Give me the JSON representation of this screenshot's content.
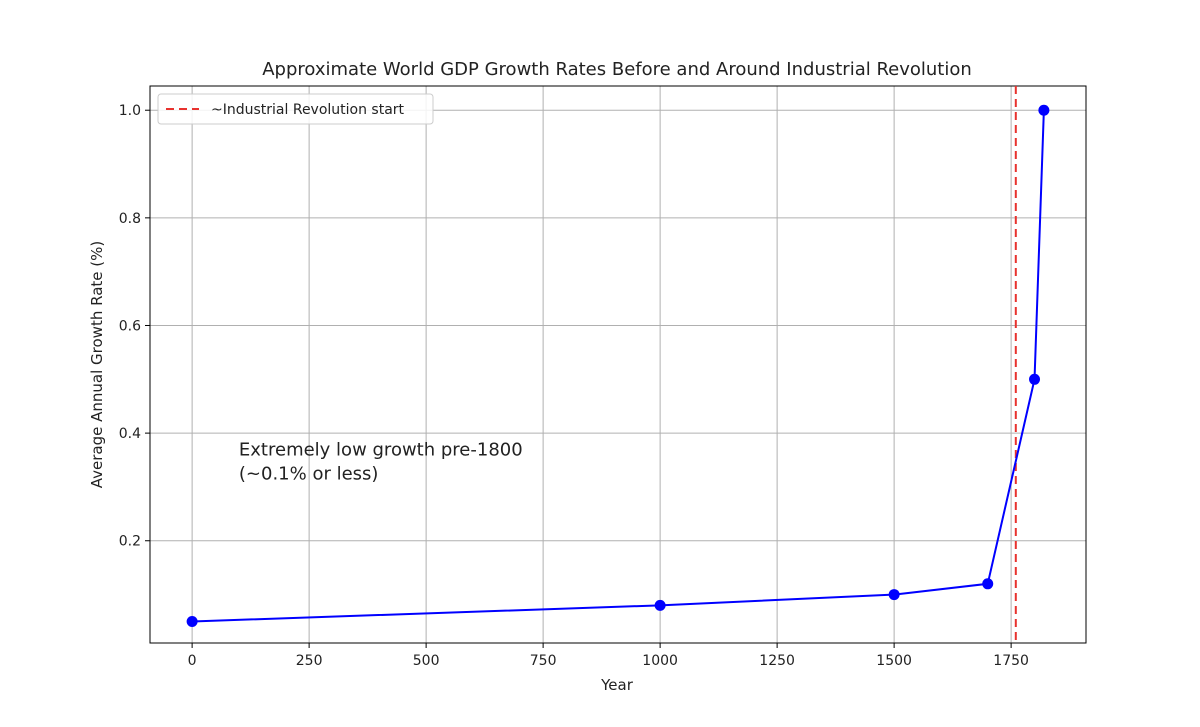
{
  "chart_data": {
    "type": "line",
    "title": "Approximate World GDP Growth Rates Before and Around Industrial Revolution",
    "xlabel": "Year",
    "ylabel": "Average Annual Growth Rate (%)",
    "xlim": [
      -90,
      1910
    ],
    "ylim": [
      0.01,
      1.045
    ],
    "x_ticks": [
      0,
      250,
      500,
      750,
      1000,
      1250,
      1500,
      1750
    ],
    "x_tick_labels": [
      "0",
      "250",
      "500",
      "750",
      "1000",
      "1250",
      "1500",
      "1750"
    ],
    "y_ticks": [
      0.2,
      0.4,
      0.6,
      0.8,
      1.0
    ],
    "y_tick_labels": [
      "0.2",
      "0.4",
      "0.6",
      "0.8",
      "1.0"
    ],
    "grid": true,
    "series": [
      {
        "color": "#0000ff",
        "marker": "circle",
        "points": [
          {
            "x": 0,
            "y": 0.05
          },
          {
            "x": 1000,
            "y": 0.08
          },
          {
            "x": 1500,
            "y": 0.1
          },
          {
            "x": 1700,
            "y": 0.12
          },
          {
            "x": 1800,
            "y": 0.5
          },
          {
            "x": 1820,
            "y": 1.0
          }
        ]
      }
    ],
    "reference_line": {
      "x": 1760,
      "style": "dashed",
      "color": "#e8322e",
      "label": "~Industrial Revolution start"
    },
    "legend": {
      "placement": "top-left",
      "entries": [
        "~Industrial Revolution start"
      ]
    },
    "annotation": {
      "lines": [
        "Extremely low growth pre-1800",
        "(~0.1% or less)"
      ],
      "x": 100,
      "y": 0.31
    }
  }
}
